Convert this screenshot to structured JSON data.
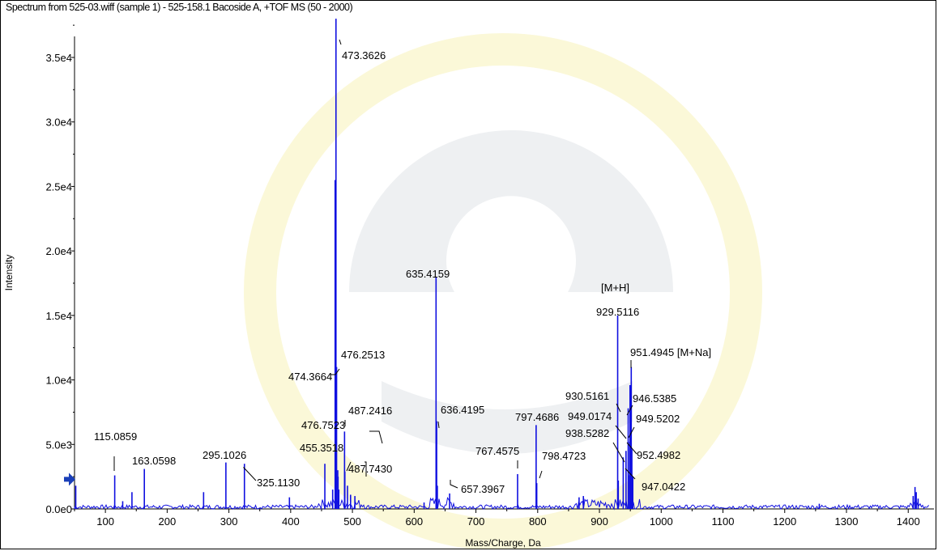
{
  "window": {
    "title": "Spectrum from 525-03.wiff (sample 1) - 525-158.1 Bacoside A, +TOF MS (50 - 2000)"
  },
  "colors": {
    "spectrum": "#1010e0",
    "axis": "#000000",
    "threshold_marker": "#1a3fb8",
    "watermark": "#eef0f2",
    "watermark_accent": "#fbf8d8"
  },
  "chart_data": {
    "type": "line",
    "title": "",
    "xlabel": "Mass/Charge, Da",
    "ylabel": "Intensity",
    "xlim": [
      50,
      1445
    ],
    "ylim": [
      0,
      38500
    ],
    "grid": false,
    "x_ticks": [
      100,
      200,
      300,
      400,
      500,
      600,
      700,
      800,
      900,
      1000,
      1100,
      1200,
      1300,
      1400
    ],
    "x_tick_labels": [
      "100",
      "200",
      "300",
      "400",
      "500",
      "600",
      "700",
      "800",
      "900",
      "1000",
      "1100",
      "1200",
      "1300",
      "1400"
    ],
    "y_ticks": [
      0,
      5000,
      10000,
      15000,
      20000,
      25000,
      30000,
      35000
    ],
    "y_tick_labels": [
      "0.0e0",
      "5.0e3",
      "1.0e4",
      "1.5e4",
      "2.0e4",
      "2.5e4",
      "3.0e4",
      "3.5e4"
    ],
    "threshold_marker": {
      "intensity": 2300,
      "icon": "right-arrow-icon"
    },
    "peaks": [
      {
        "mz": 52,
        "intensity": 1800
      },
      {
        "mz": 115.0859,
        "intensity": 2600
      },
      {
        "mz": 128,
        "intensity": 600
      },
      {
        "mz": 143,
        "intensity": 1300
      },
      {
        "mz": 163.0598,
        "intensity": 3100
      },
      {
        "mz": 259,
        "intensity": 1300
      },
      {
        "mz": 295.1026,
        "intensity": 3600
      },
      {
        "mz": 325.113,
        "intensity": 3500
      },
      {
        "mz": 398,
        "intensity": 900
      },
      {
        "mz": 455.3518,
        "intensity": 3500
      },
      {
        "mz": 468,
        "intensity": 1500
      },
      {
        "mz": 472,
        "intensity": 25500
      },
      {
        "mz": 473.3626,
        "intensity": 38000
      },
      {
        "mz": 474.3664,
        "intensity": 11000
      },
      {
        "mz": 476.2513,
        "intensity": 3000
      },
      {
        "mz": 476.7523,
        "intensity": 2500
      },
      {
        "mz": 478,
        "intensity": 1500
      },
      {
        "mz": 487.2416,
        "intensity": 6000
      },
      {
        "mz": 487.743,
        "intensity": 2900
      },
      {
        "mz": 492,
        "intensity": 1800
      },
      {
        "mz": 497,
        "intensity": 1100
      },
      {
        "mz": 504,
        "intensity": 1000
      },
      {
        "mz": 616,
        "intensity": 500
      },
      {
        "mz": 635.4159,
        "intensity": 18000
      },
      {
        "mz": 636.4195,
        "intensity": 6800
      },
      {
        "mz": 637.5,
        "intensity": 1800
      },
      {
        "mz": 657.3967,
        "intensity": 1200
      },
      {
        "mz": 767.4575,
        "intensity": 2700
      },
      {
        "mz": 797.4686,
        "intensity": 6500
      },
      {
        "mz": 798.4723,
        "intensity": 2000
      },
      {
        "mz": 867,
        "intensity": 900
      },
      {
        "mz": 874,
        "intensity": 1000
      },
      {
        "mz": 929.5116,
        "intensity": 15000
      },
      {
        "mz": 930.5161,
        "intensity": 2200
      },
      {
        "mz": 938.5282,
        "intensity": 4000
      },
      {
        "mz": 943,
        "intensity": 4500
      },
      {
        "mz": 946.5385,
        "intensity": 7800
      },
      {
        "mz": 947.0422,
        "intensity": 2600
      },
      {
        "mz": 949.0174,
        "intensity": 5200
      },
      {
        "mz": 949.5202,
        "intensity": 9600
      },
      {
        "mz": 951.4945,
        "intensity": 11000
      },
      {
        "mz": 952.4982,
        "intensity": 4600
      },
      {
        "mz": 954,
        "intensity": 2500
      },
      {
        "mz": 1256,
        "intensity": 400
      },
      {
        "mz": 1408,
        "intensity": 1000
      },
      {
        "mz": 1411,
        "intensity": 1700
      },
      {
        "mz": 1413,
        "intensity": 1300
      },
      {
        "mz": 1416,
        "intensity": 800
      }
    ],
    "annotations": [
      {
        "text": "115.0859",
        "mz": 115.0859
      },
      {
        "text": "163.0598",
        "mz": 163.0598
      },
      {
        "text": "295.1026",
        "mz": 295.1026
      },
      {
        "text": "325.1130",
        "mz": 325.113
      },
      {
        "text": "455.3518",
        "mz": 455.3518
      },
      {
        "text": "476.7523",
        "mz": 476.7523
      },
      {
        "text": "474.3664",
        "mz": 474.3664
      },
      {
        "text": "476.2513",
        "mz": 476.2513
      },
      {
        "text": "473.3626",
        "mz": 473.3626
      },
      {
        "text": "487.2416",
        "mz": 487.2416
      },
      {
        "text": "487.7430",
        "mz": 487.743
      },
      {
        "text": "635.4159",
        "mz": 635.4159
      },
      {
        "text": "636.4195",
        "mz": 636.4195
      },
      {
        "text": "657.3967",
        "mz": 657.3967
      },
      {
        "text": "767.4575",
        "mz": 767.4575
      },
      {
        "text": "797.4686",
        "mz": 797.4686
      },
      {
        "text": "798.4723",
        "mz": 798.4723
      },
      {
        "text": "[M+H]",
        "mz": 929.5116
      },
      {
        "text": "929.5116",
        "mz": 929.5116
      },
      {
        "text": "951.4945 [M+Na]",
        "mz": 951.4945
      },
      {
        "text": "930.5161",
        "mz": 930.5161
      },
      {
        "text": "946.5385",
        "mz": 946.5385
      },
      {
        "text": "949.0174",
        "mz": 949.0174
      },
      {
        "text": "949.5202",
        "mz": 949.5202
      },
      {
        "text": "938.5282",
        "mz": 938.5282
      },
      {
        "text": "952.4982",
        "mz": 952.4982
      },
      {
        "text": "947.0422",
        "mz": 947.0422
      }
    ]
  }
}
